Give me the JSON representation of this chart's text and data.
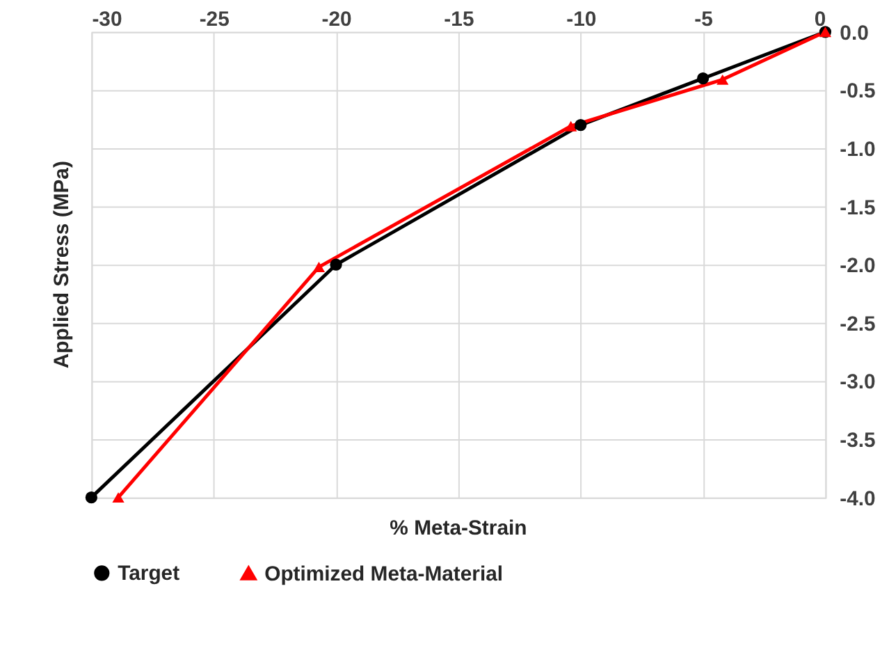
{
  "chart_data": {
    "type": "line",
    "xlabel": "% Meta-Strain",
    "ylabel": "Applied Stress (MPa)",
    "xlim": [
      -30,
      0
    ],
    "xticks": [
      -30,
      -25,
      -20,
      -15,
      -10,
      -5,
      0
    ],
    "ylim": [
      -4,
      0
    ],
    "yticks": [
      {
        "value": 0,
        "label": "0.0"
      },
      {
        "value": -0.5,
        "label": "-0.5"
      },
      {
        "value": -1,
        "label": "-1.0"
      },
      {
        "value": -1.5,
        "label": "-1.5"
      },
      {
        "value": -2,
        "label": "-2.0"
      },
      {
        "value": -2.5,
        "label": "-2.5"
      },
      {
        "value": -3,
        "label": "-3.0"
      },
      {
        "value": -3.5,
        "label": "-3.5"
      },
      {
        "value": -4,
        "label": "-4.0"
      }
    ],
    "grid": true,
    "legend": "bottom",
    "line_style": "solid",
    "series": [
      {
        "name": "Target",
        "color": "#000000",
        "marker": "circle",
        "x": [
          -30,
          -20,
          -10,
          -5,
          0
        ],
        "values": [
          -4,
          -2,
          -0.8,
          -0.4,
          0
        ]
      },
      {
        "name": "Optimized Meta-Material",
        "color": "#ff0000",
        "marker": "triangle",
        "x": [
          -28.9,
          -20.7,
          -10.4,
          -4.2,
          0
        ],
        "values": [
          -4,
          -2.02,
          -0.81,
          -0.41,
          0
        ]
      }
    ]
  }
}
